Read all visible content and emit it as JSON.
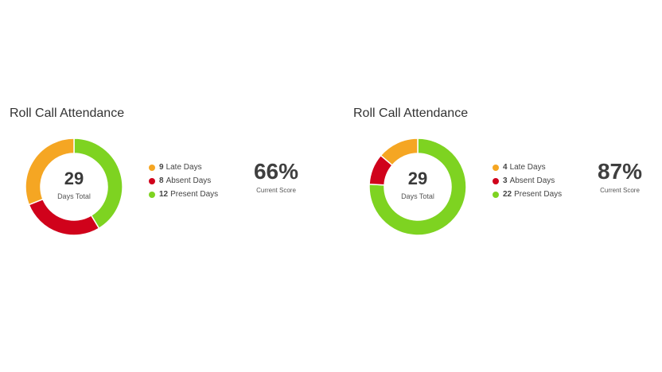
{
  "colors": {
    "late": "#f5a623",
    "absent": "#d0021b",
    "present": "#7ed321"
  },
  "chart_data": [
    {
      "type": "pie",
      "variant": "donut",
      "title": "Roll Call Attendance",
      "categories": [
        "Late Days",
        "Absent Days",
        "Present Days"
      ],
      "values": [
        9,
        8,
        12
      ],
      "colors": [
        "#f5a623",
        "#d0021b",
        "#7ed321"
      ],
      "center_value": "29",
      "center_label": "Days Total",
      "legend": [
        {
          "count": "9",
          "label": "Late Days"
        },
        {
          "count": "8",
          "label": "Absent Days"
        },
        {
          "count": "12",
          "label": "Present Days"
        }
      ],
      "legend_placement": "right",
      "score_value": "66%",
      "score_label": "Current Score"
    },
    {
      "type": "pie",
      "variant": "donut",
      "title": "Roll Call Attendance",
      "categories": [
        "Late Days",
        "Absent Days",
        "Present Days"
      ],
      "values": [
        4,
        3,
        22
      ],
      "colors": [
        "#f5a623",
        "#d0021b",
        "#7ed321"
      ],
      "center_value": "29",
      "center_label": "Days Total",
      "legend": [
        {
          "count": "4",
          "label": "Late Days"
        },
        {
          "count": "3",
          "label": "Absent Days"
        },
        {
          "count": "22",
          "label": "Present Days"
        }
      ],
      "legend_placement": "right",
      "score_value": "87%",
      "score_label": "Current Score"
    }
  ]
}
